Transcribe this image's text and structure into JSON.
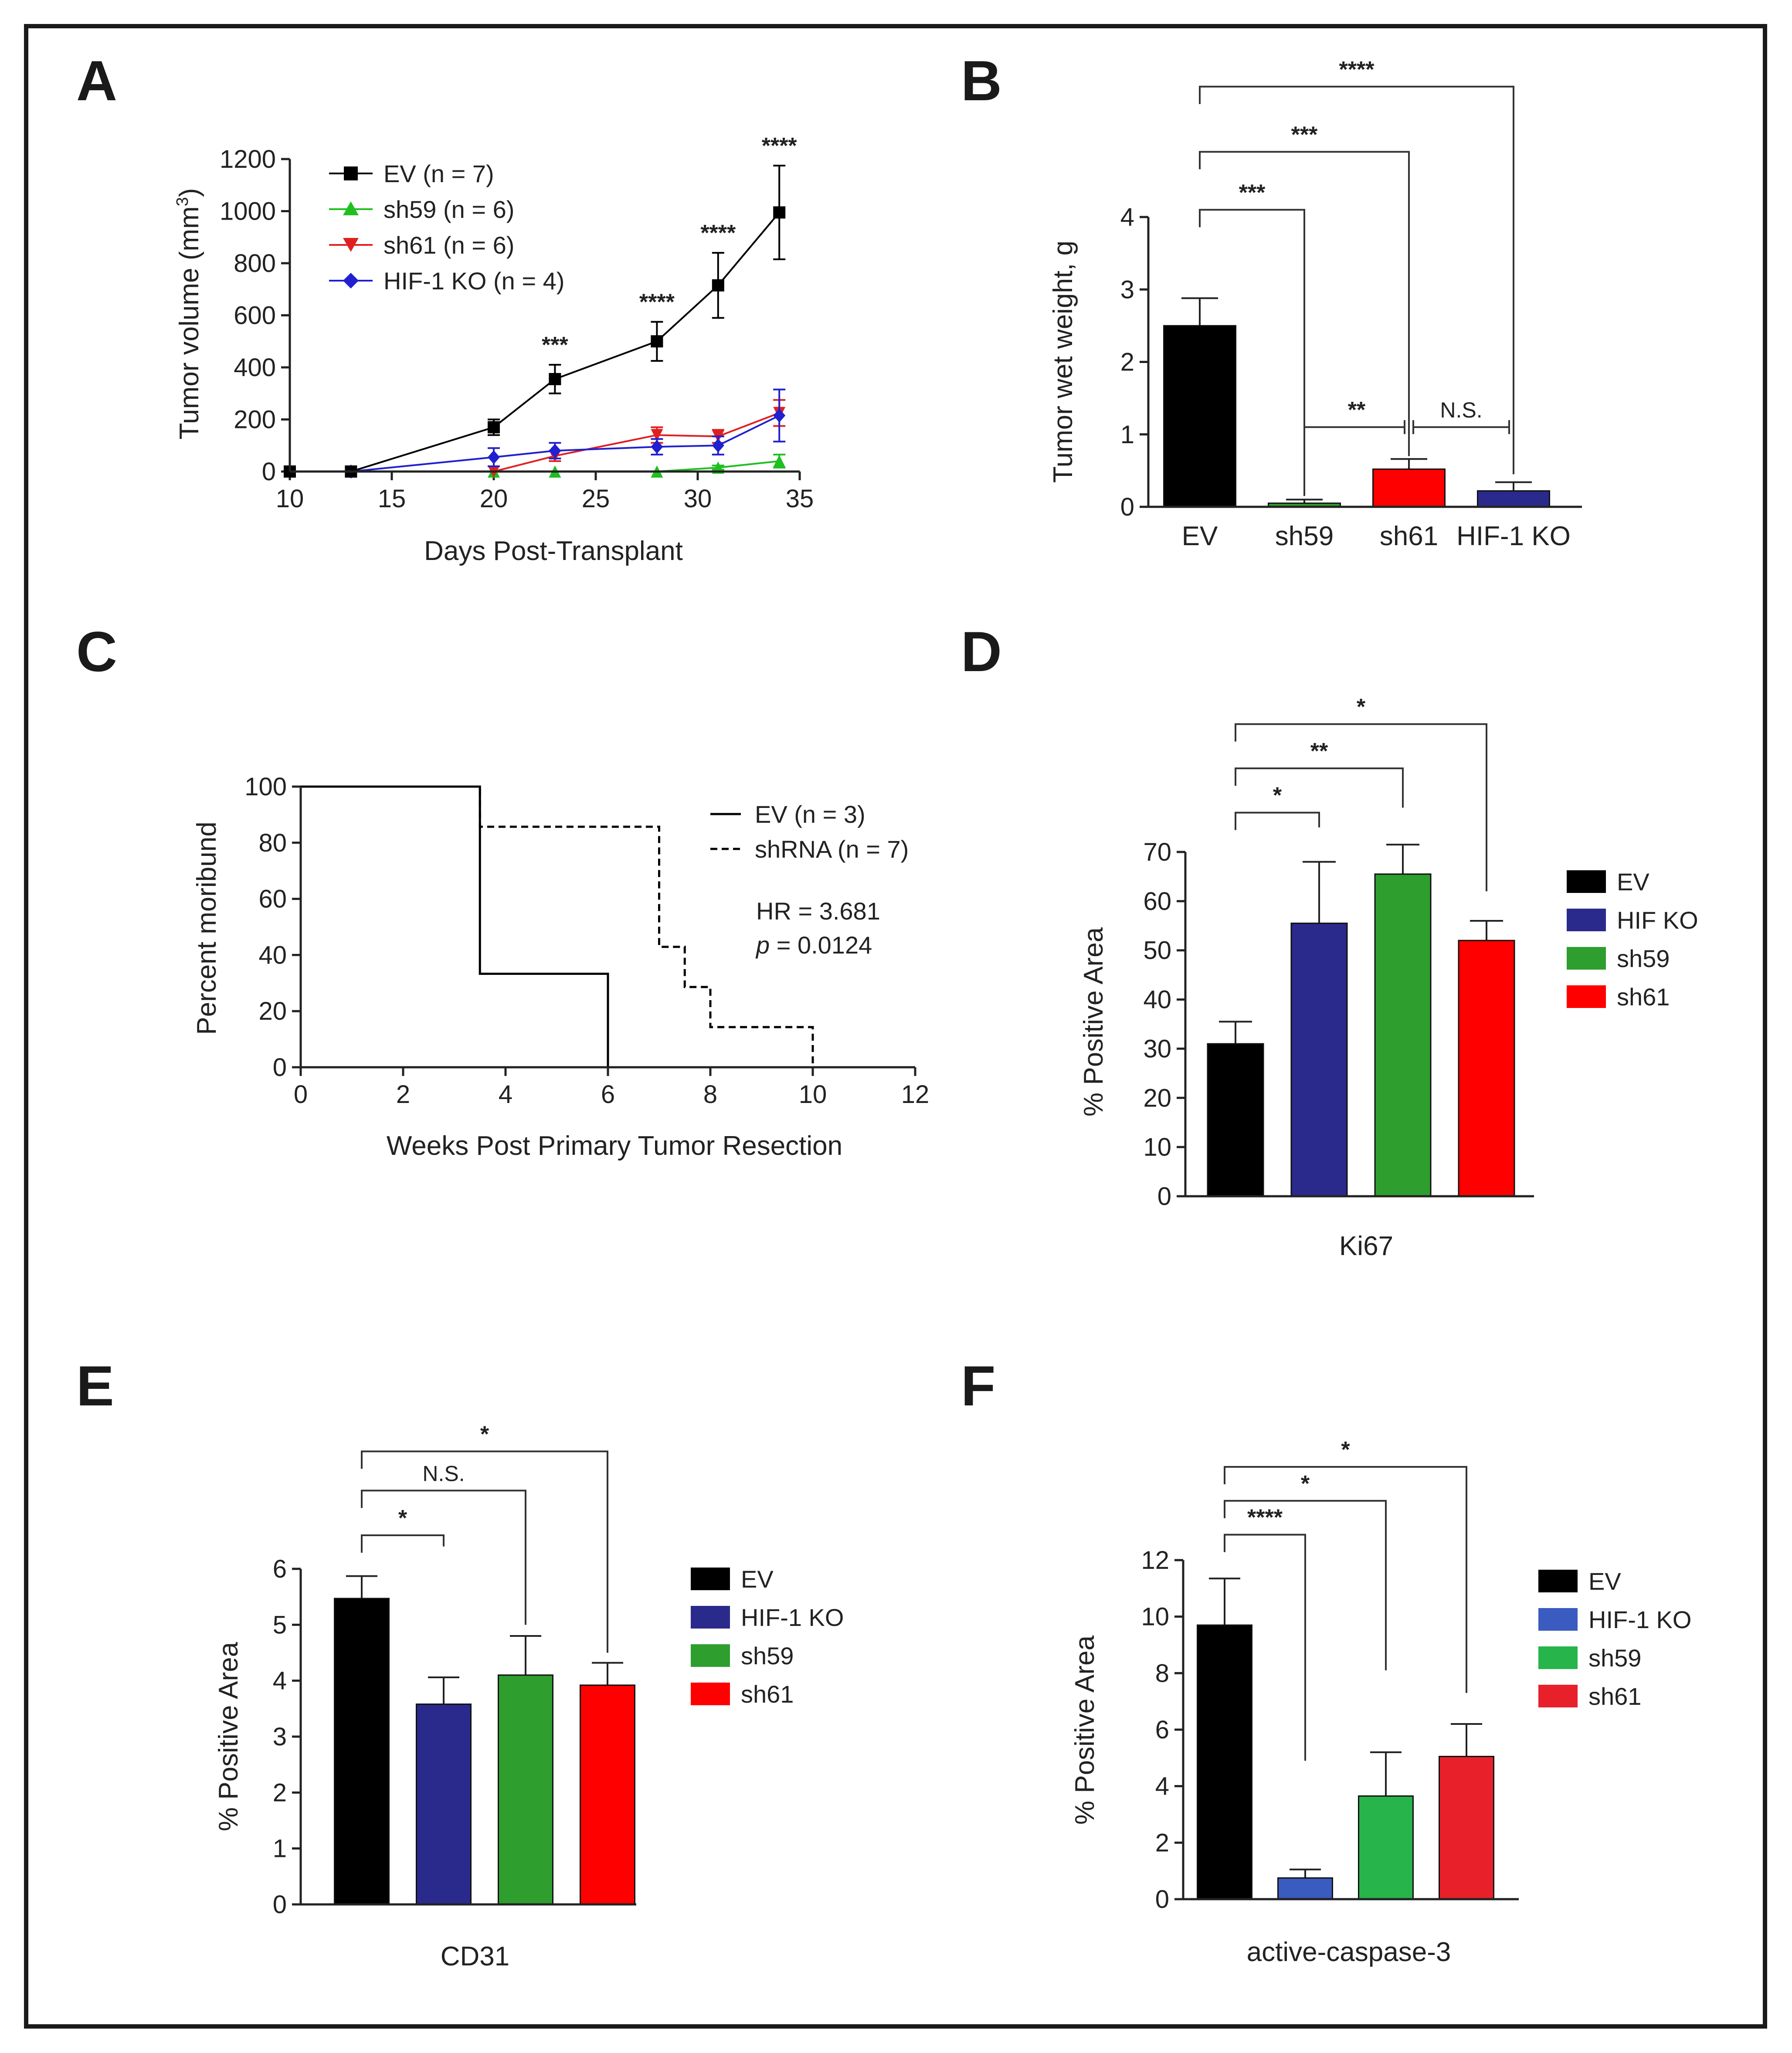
{
  "chart_data": [
    {
      "panel": "A",
      "type": "line",
      "xlabel": "Days Post-Transplant",
      "ylabel": "Tumor volume (mm³)",
      "ylabel_main": "Tumor volume (mm",
      "ylabel_sup": "3",
      "ylabel_end": ")",
      "xlim": [
        10,
        35
      ],
      "ylim": [
        0,
        1200
      ],
      "xticks": [
        10,
        15,
        20,
        25,
        30,
        35
      ],
      "yticks": [
        0,
        200,
        400,
        600,
        800,
        1000,
        1200
      ],
      "legend_position": "top-left",
      "series": [
        {
          "name": "EV (n = 7)",
          "color": "#000000",
          "marker": "square",
          "x": [
            10,
            13,
            20,
            23,
            28,
            31,
            34
          ],
          "y": [
            0,
            0,
            170,
            355,
            500,
            715,
            995
          ],
          "err": [
            0,
            0,
            30,
            55,
            75,
            125,
            180
          ]
        },
        {
          "name": "sh59 (n = 6)",
          "color": "#1fbf1f",
          "marker": "triangle-up",
          "x": [
            10,
            13,
            20,
            23,
            28,
            31,
            34
          ],
          "y": [
            0,
            0,
            0,
            0,
            0,
            15,
            40
          ],
          "err": [
            0,
            0,
            0,
            0,
            0,
            8,
            25
          ]
        },
        {
          "name": "sh61 (n = 6)",
          "color": "#e02020",
          "marker": "triangle-down",
          "x": [
            10,
            13,
            20,
            23,
            28,
            31,
            34
          ],
          "y": [
            0,
            0,
            0,
            60,
            140,
            135,
            225
          ],
          "err": [
            0,
            0,
            0,
            20,
            30,
            25,
            50
          ]
        },
        {
          "name": "HIF-1 KO (n = 4)",
          "color": "#2020d0",
          "marker": "diamond",
          "x": [
            10,
            13,
            20,
            23,
            28,
            31,
            34
          ],
          "y": [
            0,
            0,
            55,
            80,
            95,
            100,
            215
          ],
          "err": [
            0,
            0,
            35,
            30,
            30,
            35,
            100
          ]
        }
      ],
      "annotations": [
        {
          "x": 23,
          "label": "***"
        },
        {
          "x": 28,
          "label": "****"
        },
        {
          "x": 31,
          "label": "****"
        },
        {
          "x": 34,
          "label": "****"
        }
      ]
    },
    {
      "panel": "B",
      "type": "bar",
      "ylabel": "Tumor  wet weight, g",
      "ylim": [
        0,
        4
      ],
      "yticks": [
        0,
        1,
        2,
        3,
        4
      ],
      "categories": [
        "EV",
        "sh59",
        "sh61",
        "HIF-1 KO"
      ],
      "values": [
        2.5,
        0.05,
        0.52,
        0.22
      ],
      "err": [
        0.38,
        0.05,
        0.14,
        0.12
      ],
      "colors": [
        "#000000",
        "#2e9e2e",
        "#ff0000",
        "#2a2a8c"
      ],
      "comparisons": [
        {
          "from": 0,
          "to": 1,
          "label": "***",
          "level": 4.1,
          "drop_to": 0.15
        },
        {
          "from": 0,
          "to": 2,
          "label": "***",
          "level": 4.9,
          "drop_to": 0.7
        },
        {
          "from": 0,
          "to": 3,
          "label": "****",
          "level": 5.8,
          "drop_to": 0.45
        },
        {
          "from": 1,
          "to": 2,
          "label": "**",
          "level": 1.1,
          "style": "bracket"
        },
        {
          "from": 2,
          "to": 3,
          "label": "N.S.",
          "level": 1.1,
          "style": "bracket"
        }
      ]
    },
    {
      "panel": "C",
      "type": "line",
      "subtype": "kaplan-meier",
      "xlabel": "Weeks Post Primary Tumor Resection",
      "ylabel": "Percent moribund",
      "xlim": [
        0,
        12
      ],
      "ylim": [
        0,
        100
      ],
      "xticks": [
        0,
        2,
        4,
        6,
        8,
        10,
        12
      ],
      "yticks": [
        0,
        20,
        40,
        60,
        80,
        100
      ],
      "legend_position": "top-right",
      "series": [
        {
          "name": "EV (n = 3)",
          "style": "solid",
          "x": [
            0,
            3.5,
            3.5,
            6,
            6
          ],
          "y": [
            100,
            100,
            33.3,
            33.3,
            0
          ]
        },
        {
          "name": "shRNA (n = 7)",
          "style": "dashed",
          "x": [
            0,
            3.5,
            3.5,
            7,
            7,
            7.5,
            7.5,
            8,
            8,
            10,
            10
          ],
          "y": [
            100,
            100,
            85.7,
            85.7,
            42.9,
            42.9,
            28.6,
            28.6,
            14.3,
            14.3,
            0
          ]
        }
      ],
      "annotations": [
        "HR = 3.681",
        "p",
        " = 0.0124"
      ]
    },
    {
      "panel": "D",
      "type": "bar",
      "xlabel": "Ki67",
      "ylabel": "% Positive Area",
      "ylim": [
        0,
        70
      ],
      "yticks": [
        0,
        10,
        20,
        30,
        40,
        50,
        60,
        70
      ],
      "categories": [
        "EV",
        "HIF KO",
        "sh59",
        "sh61"
      ],
      "values": [
        31,
        55.5,
        65.5,
        52
      ],
      "err": [
        4.5,
        12.5,
        6,
        4
      ],
      "colors": [
        "#000000",
        "#2a2a8c",
        "#2e9e2e",
        "#ff0000"
      ],
      "legend_position": "right",
      "comparisons": [
        {
          "from": 0,
          "to": 1,
          "label": "*",
          "level": 78,
          "drop_to": 75
        },
        {
          "from": 0,
          "to": 2,
          "label": "**",
          "level": 87,
          "drop_to": 79
        },
        {
          "from": 0,
          "to": 3,
          "label": "*",
          "level": 96,
          "drop_to": 62
        }
      ]
    },
    {
      "panel": "E",
      "type": "bar",
      "xlabel": "CD31",
      "ylabel": "% Positive Area",
      "ylim": [
        0,
        6
      ],
      "yticks": [
        0,
        1,
        2,
        3,
        4,
        5,
        6
      ],
      "categories": [
        "EV",
        "HIF-1 KO",
        "sh59",
        "sh61"
      ],
      "values": [
        5.47,
        3.58,
        4.1,
        3.92
      ],
      "err": [
        0.4,
        0.48,
        0.7,
        0.4
      ],
      "colors": [
        "#000000",
        "#2a2a8c",
        "#2e9e2e",
        "#ff0000"
      ],
      "legend_position": "right",
      "comparisons": [
        {
          "from": 0,
          "to": 1,
          "label": "*",
          "level": 6.6,
          "drop_to": 6.4
        },
        {
          "from": 0,
          "to": 2,
          "label": "N.S.",
          "level": 7.4,
          "drop_to": 5.0
        },
        {
          "from": 0,
          "to": 3,
          "label": "*",
          "level": 8.1,
          "drop_to": 4.5
        }
      ]
    },
    {
      "panel": "F",
      "type": "bar",
      "xlabel": "active-caspase-3",
      "ylabel": "% Positive Area",
      "ylim": [
        0,
        12
      ],
      "yticks": [
        0,
        2,
        4,
        6,
        8,
        10,
        12
      ],
      "categories": [
        "EV",
        "HIF-1 KO",
        "sh59",
        "sh61"
      ],
      "values": [
        9.7,
        0.75,
        3.65,
        5.05
      ],
      "err": [
        1.65,
        0.3,
        1.55,
        1.15
      ],
      "colors": [
        "#000000",
        "#3a5bbf",
        "#27b44a",
        "#e8202a"
      ],
      "legend_position": "right",
      "comparisons": [
        {
          "from": 0,
          "to": 1,
          "label": "****",
          "level": 12.9,
          "drop_to": 4.9
        },
        {
          "from": 0,
          "to": 2,
          "label": "*",
          "level": 14.1,
          "drop_to": 8.1
        },
        {
          "from": 0,
          "to": 3,
          "label": "*",
          "level": 15.3,
          "drop_to": 7.3
        }
      ]
    }
  ]
}
